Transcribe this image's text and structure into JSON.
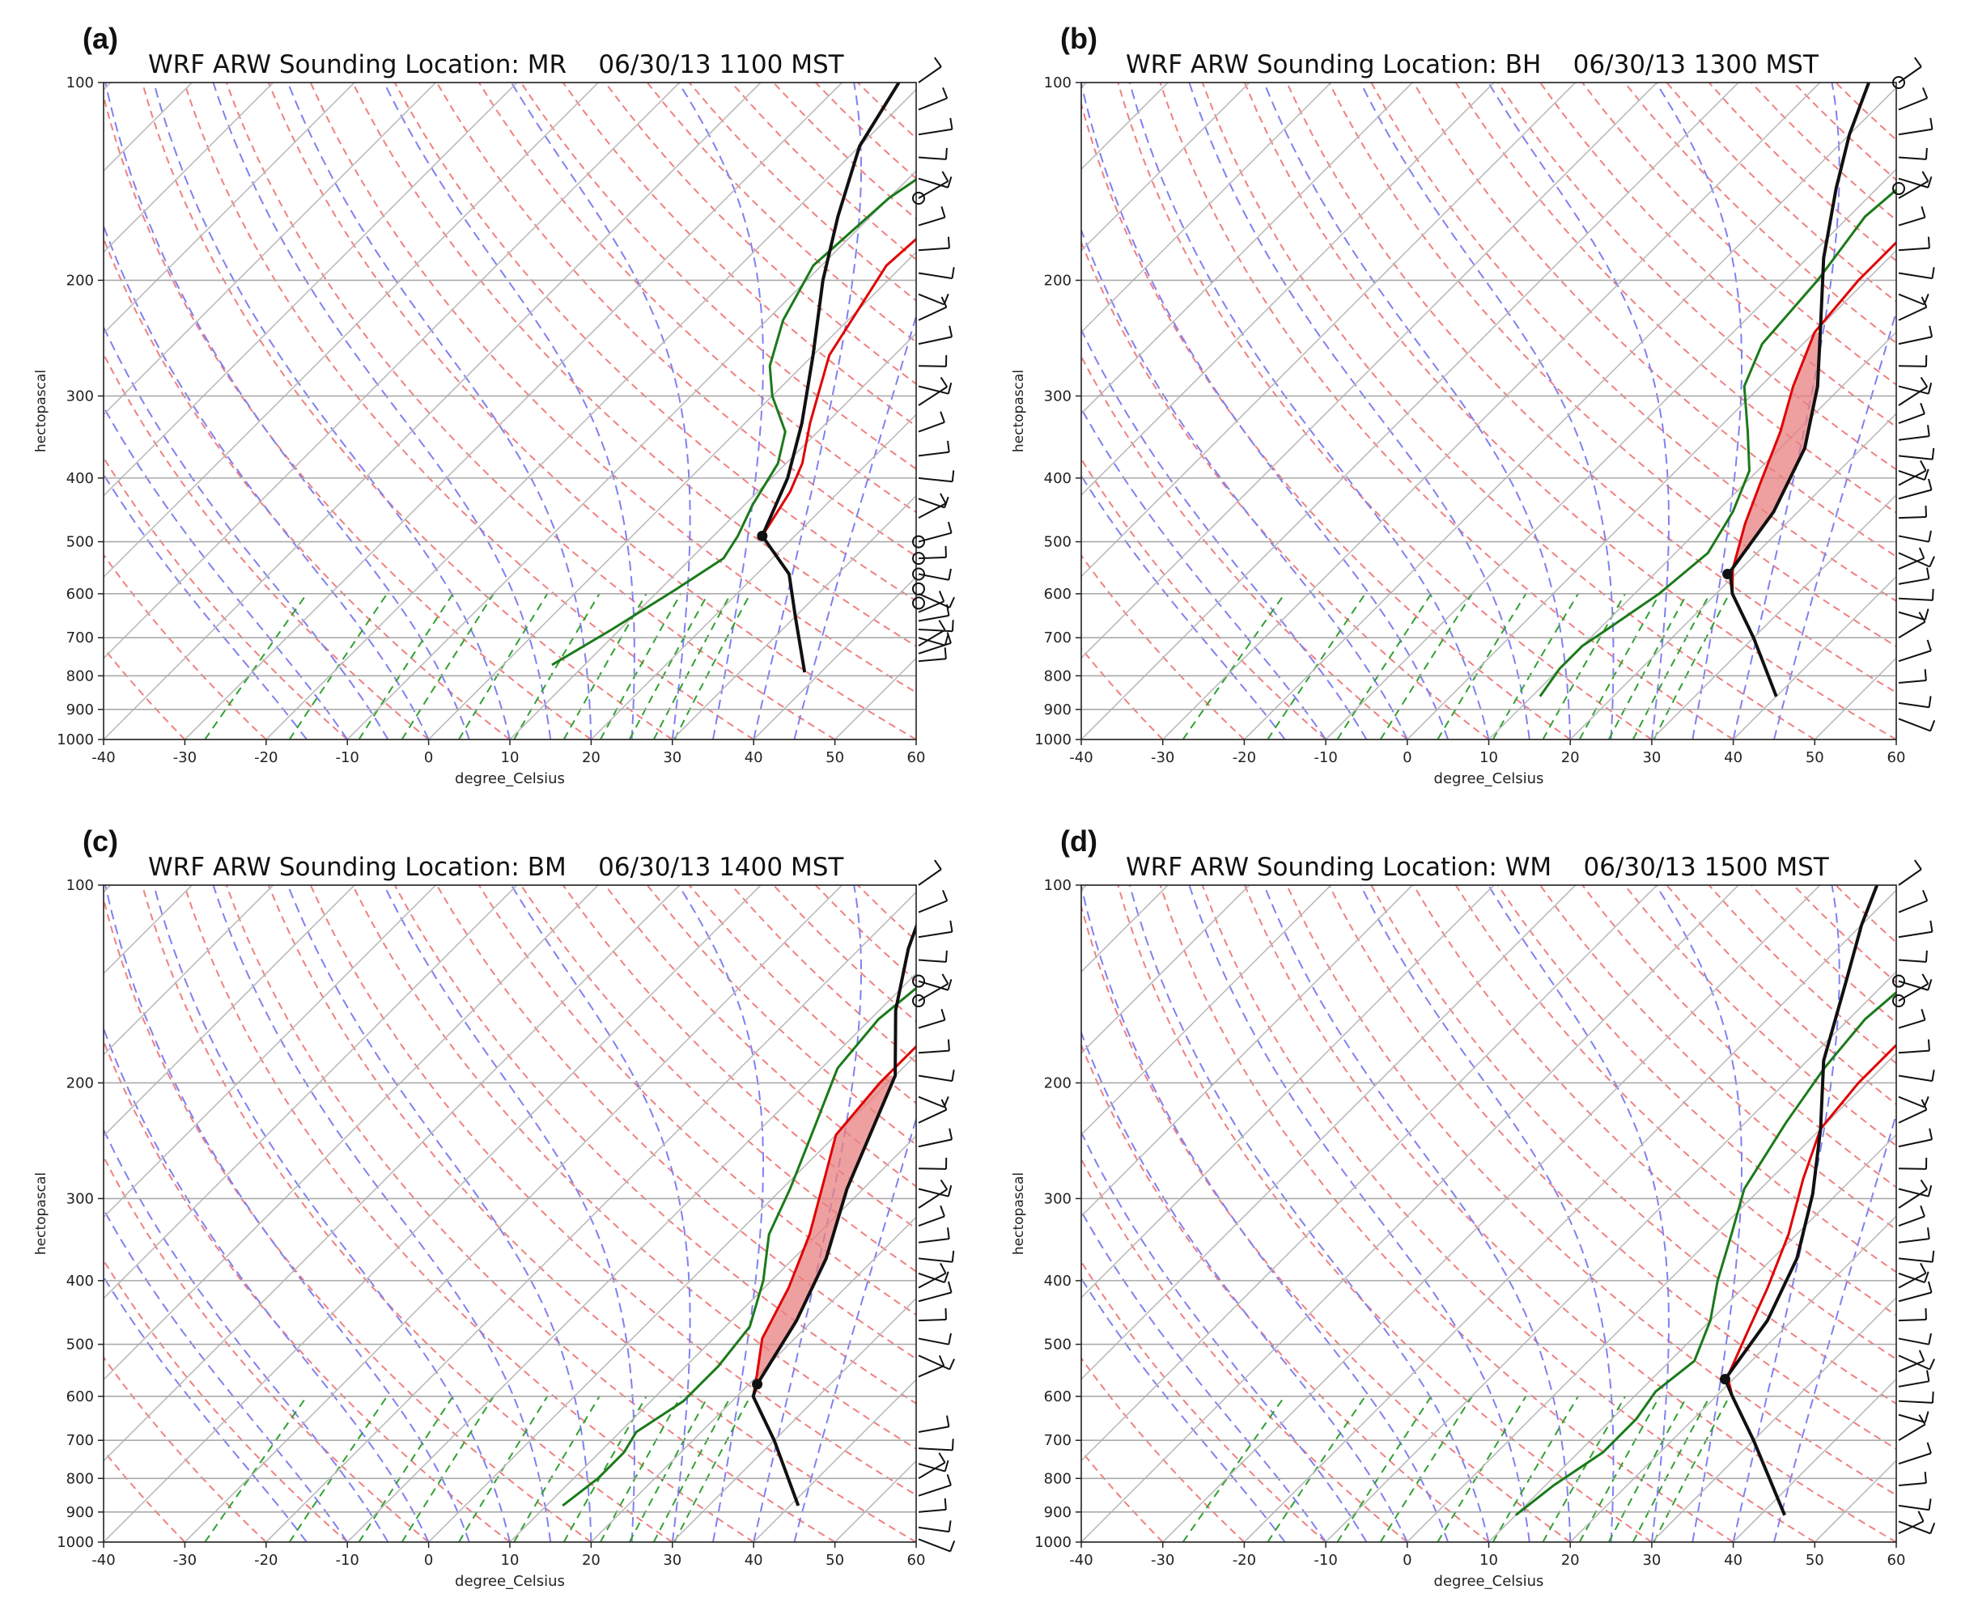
{
  "figure": {
    "description_free": true
  },
  "chart_data": [
    {
      "type": "line",
      "panel_label": "(a)",
      "title": "WRF ARW Sounding Location: MR    06/30/13 1100 MST",
      "xlabel": "degree_Celsius",
      "ylabel": "hectopascal",
      "xlim": [
        -40,
        60
      ],
      "ylim": [
        1000,
        100
      ],
      "xticks": [
        -40,
        -30,
        -20,
        -10,
        0,
        10,
        20,
        30,
        40,
        50,
        60
      ],
      "yticks": [
        1000,
        900,
        800,
        700,
        600,
        500,
        400,
        300,
        200,
        100
      ],
      "series": [
        {
          "name": "temperature",
          "color": "#e00000",
          "points": [
            [
              38,
              790
            ],
            [
              30,
              650
            ],
            [
              24,
              560
            ],
            [
              16,
              490
            ],
            [
              14,
              420
            ],
            [
              12,
              380
            ],
            [
              8,
              330
            ],
            [
              2,
              260
            ],
            [
              -2,
              190
            ],
            [
              -1,
              150
            ],
            [
              0,
              128
            ],
            [
              3,
              110
            ],
            [
              6,
              100
            ]
          ]
        },
        {
          "name": "dewpoint",
          "color": "#1a7a1a",
          "points": [
            [
              6,
              770
            ],
            [
              9,
              680
            ],
            [
              12,
              590
            ],
            [
              14,
              530
            ],
            [
              13,
              490
            ],
            [
              11,
              440
            ],
            [
              9,
              380
            ],
            [
              6,
              340
            ],
            [
              0,
              300
            ],
            [
              -4,
              270
            ],
            [
              -8,
              230
            ],
            [
              -11,
              190
            ],
            [
              -10,
              150
            ],
            [
              -7,
              125
            ],
            [
              -3,
              110
            ],
            [
              0,
              100
            ]
          ]
        },
        {
          "name": "parcel",
          "color": "#111111",
          "points": [
            [
              38,
              790
            ],
            [
              30,
              650
            ],
            [
              24,
              560
            ],
            [
              16,
              490
            ],
            [
              12,
              400
            ],
            [
              7,
              330
            ],
            [
              0,
              260
            ],
            [
              -8,
              200
            ],
            [
              -14,
              160
            ],
            [
              -20,
              125
            ],
            [
              -23,
              100
            ]
          ]
        }
      ],
      "lcl": {
        "T": 16,
        "p": 490
      },
      "cape": null,
      "wind_barbs_p": [
        100,
        110,
        120,
        130,
        140,
        150,
        165,
        180,
        195,
        210,
        230,
        250,
        270,
        290,
        310,
        340,
        370,
        400,
        430,
        460,
        500,
        530,
        560,
        600,
        640,
        660,
        680,
        700,
        720,
        740,
        760
      ],
      "calm_p": [
        150,
        500,
        530,
        560,
        590,
        620
      ]
    },
    {
      "type": "line",
      "panel_label": "(b)",
      "title": "WRF ARW Sounding Location: BH    06/30/13 1300 MST",
      "xlabel": "degree_Celsius",
      "ylabel": "hectopascal",
      "xlim": [
        -40,
        60
      ],
      "ylim": [
        1000,
        100
      ],
      "xticks": [
        -40,
        -30,
        -20,
        -10,
        0,
        10,
        20,
        30,
        40,
        50,
        60
      ],
      "yticks": [
        1000,
        900,
        800,
        700,
        600,
        500,
        400,
        300,
        200,
        100
      ],
      "series": [
        {
          "name": "temperature",
          "color": "#e00000",
          "points": [
            [
              40,
              860
            ],
            [
              30,
              700
            ],
            [
              22,
              600
            ],
            [
              19,
              550
            ],
            [
              15,
              470
            ],
            [
              12,
              410
            ],
            [
              8,
              340
            ],
            [
              4,
              290
            ],
            [
              0,
              240
            ],
            [
              -1,
              200
            ],
            [
              -1,
              170
            ],
            [
              1,
              140
            ],
            [
              4,
              120
            ],
            [
              9,
              100
            ]
          ]
        },
        {
          "name": "dewpoint",
          "color": "#1a7a1a",
          "points": [
            [
              11,
              860
            ],
            [
              10,
              780
            ],
            [
              10,
              720
            ],
            [
              11,
              680
            ],
            [
              13,
              600
            ],
            [
              14,
              520
            ],
            [
              12,
              450
            ],
            [
              9,
              390
            ],
            [
              4,
              340
            ],
            [
              -2,
              290
            ],
            [
              -5,
              250
            ],
            [
              -6,
              200
            ],
            [
              -8,
              160
            ],
            [
              -7,
              135
            ],
            [
              -4,
              115
            ],
            [
              0,
              100
            ]
          ]
        },
        {
          "name": "parcel",
          "color": "#111111",
          "points": [
            [
              40,
              860
            ],
            [
              30,
              700
            ],
            [
              22,
              600
            ],
            [
              19,
              555
            ],
            [
              17,
              450
            ],
            [
              13,
              360
            ],
            [
              7,
              290
            ],
            [
              0,
              235
            ],
            [
              -8,
              185
            ],
            [
              -15,
              145
            ],
            [
              -20,
              120
            ],
            [
              -24,
              100
            ]
          ]
        }
      ],
      "lcl": {
        "T": 19,
        "p": 560
      },
      "cape": {
        "top_p": 240,
        "bottom_p": 550
      },
      "wind_barbs_p": [
        100,
        110,
        120,
        130,
        140,
        150,
        165,
        180,
        195,
        210,
        230,
        250,
        270,
        290,
        310,
        330,
        350,
        370,
        390,
        410,
        430,
        460,
        490,
        520,
        550,
        580,
        610,
        640,
        700,
        760,
        820,
        880,
        930
      ],
      "calm_p": [
        100,
        145
      ]
    },
    {
      "type": "line",
      "panel_label": "(c)",
      "title": "WRF ARW Sounding Location: BM    06/30/13 1400 MST",
      "xlabel": "degree_Celsius",
      "ylabel": "hectopascal",
      "xlim": [
        -40,
        60
      ],
      "ylim": [
        1000,
        100
      ],
      "xticks": [
        -40,
        -30,
        -20,
        -10,
        0,
        10,
        20,
        30,
        40,
        50,
        60
      ],
      "yticks": [
        1000,
        900,
        800,
        700,
        600,
        500,
        400,
        300,
        200,
        100
      ],
      "series": [
        {
          "name": "temperature",
          "color": "#e00000",
          "points": [
            [
              41,
              880
            ],
            [
              30,
              700
            ],
            [
              22,
              600
            ],
            [
              20,
              560
            ],
            [
              16,
              490
            ],
            [
              13,
              410
            ],
            [
              9,
              340
            ],
            [
              4,
              280
            ],
            [
              0,
              240
            ],
            [
              -1,
              200
            ],
            [
              -1,
              170
            ],
            [
              0,
              145
            ],
            [
              3,
              125
            ],
            [
              6,
              115
            ],
            [
              10,
              100
            ]
          ]
        },
        {
          "name": "dewpoint",
          "color": "#1a7a1a",
          "points": [
            [
              12,
              880
            ],
            [
              13,
              800
            ],
            [
              13,
              730
            ],
            [
              12,
              680
            ],
            [
              14,
              610
            ],
            [
              14,
              540
            ],
            [
              13,
              470
            ],
            [
              9,
              400
            ],
            [
              4,
              340
            ],
            [
              1,
              290
            ],
            [
              -3,
              240
            ],
            [
              -8,
              190
            ],
            [
              -9,
              160
            ],
            [
              -8,
              140
            ],
            [
              -6,
              125
            ],
            [
              -3,
              110
            ],
            [
              0,
              100
            ]
          ]
        },
        {
          "name": "parcel",
          "color": "#111111",
          "points": [
            [
              41,
              880
            ],
            [
              30,
              700
            ],
            [
              22,
              600
            ],
            [
              21,
              575
            ],
            [
              18,
              460
            ],
            [
              14,
              370
            ],
            [
              8,
              290
            ],
            [
              0,
              195
            ],
            [
              -8,
              155
            ],
            [
              -14,
              125
            ],
            [
              -19,
              100
            ]
          ]
        }
      ],
      "lcl": {
        "T": 21,
        "p": 575
      },
      "cape": {
        "top_p": 195,
        "bottom_p": 575
      },
      "wind_barbs_p": [
        100,
        110,
        120,
        130,
        140,
        150,
        165,
        180,
        195,
        210,
        230,
        250,
        270,
        290,
        310,
        330,
        350,
        370,
        390,
        410,
        430,
        460,
        490,
        520,
        560,
        680,
        720,
        760,
        800,
        850,
        900,
        950,
        990
      ],
      "calm_p": [
        140,
        150
      ]
    },
    {
      "type": "line",
      "panel_label": "(d)",
      "title": "WRF ARW Sounding Location: WM    06/30/13 1500 MST",
      "xlabel": "degree_Celsius",
      "ylabel": "hectopascal",
      "xlim": [
        -40,
        60
      ],
      "ylim": [
        1000,
        100
      ],
      "xticks": [
        -40,
        -30,
        -20,
        -10,
        0,
        10,
        20,
        30,
        40,
        50,
        60
      ],
      "yticks": [
        1000,
        900,
        800,
        700,
        600,
        500,
        400,
        300,
        200,
        100
      ],
      "series": [
        {
          "name": "temperature",
          "color": "#e00000",
          "points": [
            [
              43,
              910
            ],
            [
              30,
              700
            ],
            [
              22,
              600
            ],
            [
              19,
              560
            ],
            [
              16,
              480
            ],
            [
              13,
              410
            ],
            [
              9,
              340
            ],
            [
              4,
              280
            ],
            [
              0,
              235
            ],
            [
              -1,
              200
            ],
            [
              -1,
              170
            ],
            [
              0,
              145
            ],
            [
              3,
              125
            ],
            [
              6,
              115
            ],
            [
              9,
              100
            ]
          ]
        },
        {
          "name": "dewpoint",
          "color": "#1a7a1a",
          "points": [
            [
              10,
              910
            ],
            [
              11,
              820
            ],
            [
              13,
              730
            ],
            [
              13,
              650
            ],
            [
              12,
              590
            ],
            [
              13,
              530
            ],
            [
              10,
              460
            ],
            [
              6,
              400
            ],
            [
              2,
              340
            ],
            [
              -2,
              290
            ],
            [
              -5,
              230
            ],
            [
              -7,
              190
            ],
            [
              -8,
              160
            ],
            [
              -7,
              135
            ],
            [
              -4,
              115
            ],
            [
              0,
              100
            ]
          ]
        },
        {
          "name": "parcel",
          "color": "#111111",
          "points": [
            [
              43,
              910
            ],
            [
              30,
              700
            ],
            [
              22,
              600
            ],
            [
              19,
              565
            ],
            [
              17,
              460
            ],
            [
              13,
              370
            ],
            [
              7,
              295
            ],
            [
              0,
              235
            ],
            [
              -8,
              185
            ],
            [
              -15,
              140
            ],
            [
              -20,
              115
            ],
            [
              -23,
              100
            ]
          ]
        }
      ],
      "lcl": {
        "T": 19,
        "p": 565
      },
      "cape": null,
      "wind_barbs_p": [
        100,
        110,
        120,
        130,
        140,
        150,
        165,
        180,
        195,
        210,
        230,
        250,
        270,
        290,
        310,
        330,
        350,
        370,
        390,
        410,
        430,
        460,
        490,
        520,
        550,
        580,
        610,
        640,
        700,
        760,
        820,
        880,
        930,
        970
      ],
      "calm_p": [
        140,
        150
      ]
    }
  ]
}
